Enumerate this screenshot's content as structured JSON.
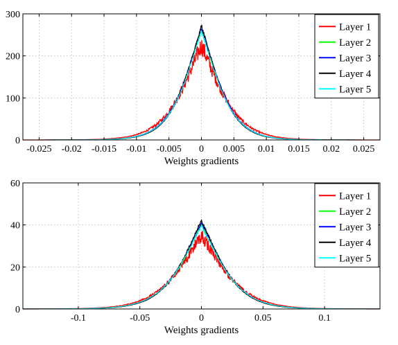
{
  "chart_data": [
    {
      "type": "line",
      "xlabel": "Weights gradients",
      "ylabel": "",
      "xlim": [
        -0.0275,
        0.0275
      ],
      "ylim": [
        0,
        300
      ],
      "xticks": [
        -0.025,
        -0.02,
        -0.015,
        -0.01,
        -0.005,
        0,
        0.005,
        0.01,
        0.015,
        0.02,
        0.025
      ],
      "xtick_labels": [
        "-0.025",
        "-0.02",
        "-0.015",
        "-0.01",
        "-0.005",
        "0",
        "0.005",
        "0.01",
        "0.015",
        "0.02",
        "0.025"
      ],
      "yticks": [
        0,
        100,
        200,
        300
      ],
      "ytick_labels": [
        "0",
        "100",
        "200",
        "300"
      ],
      "grid": true,
      "legend_position": "top-right",
      "series": [
        {
          "name": "Layer 1",
          "color": "#ff0000",
          "peak": 225,
          "scale": 0.003,
          "noise": 0.1
        },
        {
          "name": "Layer 2",
          "color": "#00ff00",
          "peak": 262,
          "scale": 0.0026,
          "noise": 0.02
        },
        {
          "name": "Layer 3",
          "color": "#0000ff",
          "peak": 266,
          "scale": 0.0026,
          "noise": 0.02
        },
        {
          "name": "Layer 4",
          "color": "#000000",
          "peak": 272,
          "scale": 0.0025,
          "noise": 0.02
        },
        {
          "name": "Layer 5",
          "color": "#00ffff",
          "peak": 258,
          "scale": 0.0026,
          "noise": 0.02
        }
      ]
    },
    {
      "type": "line",
      "xlabel": "Weights gradients",
      "ylabel": "",
      "xlim": [
        -0.145,
        0.145
      ],
      "ylim": [
        0,
        60
      ],
      "xticks": [
        -0.1,
        -0.05,
        0,
        0.05,
        0.1
      ],
      "xtick_labels": [
        "-0.1",
        "-0.05",
        "0",
        "0.05",
        "0.1"
      ],
      "yticks": [
        0,
        20,
        40,
        60
      ],
      "ytick_labels": [
        "0",
        "20",
        "40",
        "60"
      ],
      "grid": true,
      "legend_position": "top-right",
      "series": [
        {
          "name": "Layer 1",
          "color": "#ff0000",
          "peak": 35,
          "scale": 0.0185,
          "noise": 0.09
        },
        {
          "name": "Layer 2",
          "color": "#00ff00",
          "peak": 40,
          "scale": 0.0165,
          "noise": 0.02
        },
        {
          "name": "Layer 3",
          "color": "#0000ff",
          "peak": 41,
          "scale": 0.0165,
          "noise": 0.02
        },
        {
          "name": "Layer 4",
          "color": "#000000",
          "peak": 42,
          "scale": 0.016,
          "noise": 0.02
        },
        {
          "name": "Layer 5",
          "color": "#00ffff",
          "peak": 39.5,
          "scale": 0.0168,
          "noise": 0.02
        }
      ]
    }
  ]
}
